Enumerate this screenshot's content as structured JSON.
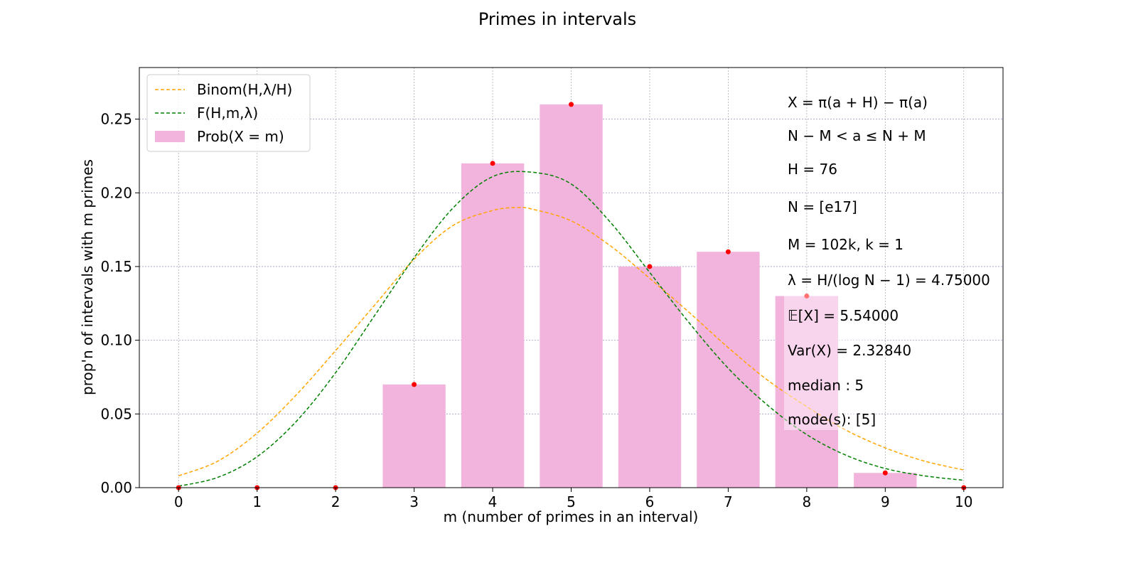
{
  "chart_data": {
    "type": "bar",
    "title": "Primes in intervals",
    "xlabel": "m (number of primes in an interval)",
    "ylabel": "prop'n of intervals with m primes",
    "xlim": [
      -0.5,
      10.5
    ],
    "ylim": [
      0,
      0.285
    ],
    "grid": true,
    "legend_position": "top-left",
    "x_ticks": [
      "0",
      "1",
      "2",
      "3",
      "4",
      "5",
      "6",
      "7",
      "8",
      "9",
      "10"
    ],
    "y_ticks": [
      "0.00",
      "0.05",
      "0.10",
      "0.15",
      "0.20",
      "0.25"
    ],
    "categories": [
      0,
      1,
      2,
      3,
      4,
      5,
      6,
      7,
      8,
      9,
      10
    ],
    "series": [
      {
        "name": "Prob(X = m)",
        "kind": "bar",
        "color": "#f2b3dc",
        "values": [
          0.0,
          0.0,
          0.0,
          0.07,
          0.22,
          0.26,
          0.15,
          0.16,
          0.13,
          0.01,
          0.0
        ]
      },
      {
        "name": "Binom(H, λ/H)",
        "kind": "dashed-line",
        "color": "#ffa500",
        "x": [
          0,
          0.5,
          1,
          1.5,
          2,
          2.5,
          3,
          3.5,
          4,
          4.3,
          4.5,
          5,
          5.5,
          6,
          6.5,
          7,
          7.5,
          8,
          8.5,
          9,
          9.5,
          10
        ],
        "values": [
          0.008,
          0.018,
          0.037,
          0.063,
          0.093,
          0.124,
          0.155,
          0.178,
          0.188,
          0.19,
          0.189,
          0.181,
          0.164,
          0.142,
          0.119,
          0.095,
          0.073,
          0.055,
          0.039,
          0.027,
          0.018,
          0.012
        ]
      },
      {
        "name": "F(H, m, λ)",
        "kind": "dashed-line",
        "color": "#008000",
        "x": [
          0,
          0.5,
          1,
          1.5,
          2,
          2.5,
          3,
          3.5,
          4,
          4.5,
          5,
          5.5,
          6,
          6.5,
          7,
          7.5,
          8,
          8.5,
          9,
          9.5,
          10
        ],
        "values": [
          0.001,
          0.007,
          0.021,
          0.045,
          0.078,
          0.117,
          0.156,
          0.19,
          0.211,
          0.214,
          0.206,
          0.18,
          0.146,
          0.112,
          0.081,
          0.056,
          0.036,
          0.022,
          0.013,
          0.008,
          0.005
        ]
      },
      {
        "name": "observed",
        "kind": "points",
        "color": "#ff0000",
        "values": [
          0.0,
          0.0,
          0.0,
          0.07,
          0.22,
          0.26,
          0.15,
          0.16,
          0.13,
          0.01,
          0.0
        ]
      }
    ],
    "legend": [
      {
        "label": "Binom(H,λ/H)",
        "style": "dashed",
        "color": "#ffa500"
      },
      {
        "label": "F(H,m,λ)",
        "style": "dashed",
        "color": "#008000"
      },
      {
        "label": "Prob(X = m)",
        "style": "patch",
        "color": "#f2b3dc"
      }
    ],
    "annotations": [
      "X = π(a + H) − π(a)",
      "N − M < a ≤ N + M",
      "H = 76",
      "N = [e17]",
      "M = 102k, k = 1",
      "λ = H/(log N − 1) = 4.75000",
      "𝔼[X] = 5.54000",
      "Var(X) = 2.32840",
      "median : 5",
      "mode(s): [5]"
    ]
  }
}
